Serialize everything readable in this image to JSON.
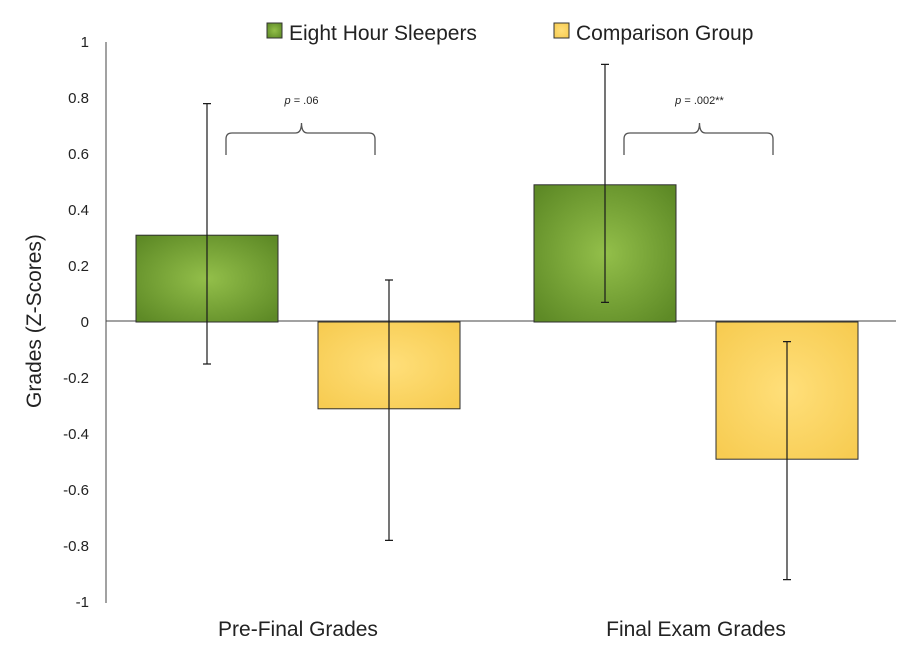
{
  "chart_data": {
    "type": "bar",
    "title": "",
    "xlabel": "",
    "ylabel": "Grades (Z-Scores)",
    "ylim": [
      -1,
      1
    ],
    "yticks": [
      "1",
      "0.8",
      "0.6",
      "0.4",
      "0.2",
      "0",
      "-0.2",
      "-0.4",
      "-0.6",
      "-0.8",
      "-1"
    ],
    "categories": [
      "Pre-Final Grades",
      "Final Exam Grades"
    ],
    "series": [
      {
        "name": "Eight Hour Sleepers",
        "color": "#6f9a2e",
        "values": [
          0.31,
          0.49
        ],
        "error_low": [
          -0.15,
          0.07
        ],
        "error_high": [
          0.78,
          0.92
        ]
      },
      {
        "name": "Comparison Group",
        "color": "#fbd45e",
        "values": [
          -0.31,
          -0.49
        ],
        "error_low": [
          -0.78,
          -0.92
        ],
        "error_high": [
          0.15,
          -0.07
        ]
      }
    ],
    "annotations": [
      {
        "label": "p",
        "text": " = .06",
        "category": 0
      },
      {
        "label": "p",
        "text": " = .002**",
        "category": 1
      }
    ],
    "legend_position": "top-center",
    "grid": false
  }
}
